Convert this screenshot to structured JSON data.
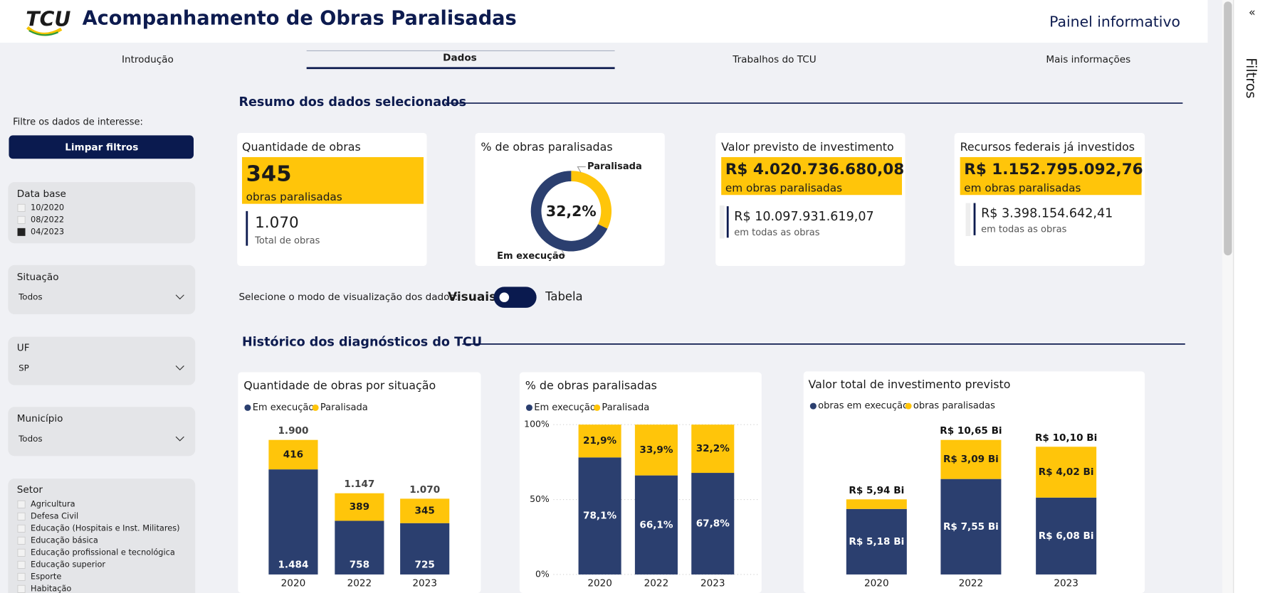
{
  "header": {
    "logo": "TCU",
    "title": "Acompanhamento de Obras Paralisadas",
    "right": "Painel informativo"
  },
  "tabs": {
    "items": [
      "Introdução",
      "Dados",
      "Trabalhos do TCU",
      "Mais informações"
    ],
    "active": 1
  },
  "sidebar": {
    "prompt": "Filtre os dados de interesse:",
    "clear_button": "Limpar filtros",
    "data_base": {
      "label": "Data base",
      "options": [
        "10/2020",
        "08/2022",
        "04/2023"
      ],
      "selected": 2
    },
    "situacao": {
      "label": "Situação",
      "value": "Todos"
    },
    "uf": {
      "label": "UF",
      "value": "SP"
    },
    "municipio": {
      "label": "Município",
      "value": "Todos"
    },
    "setor": {
      "label": "Setor",
      "options": [
        "Agricultura",
        "Defesa Civil",
        "Educação (Hospitais e Inst. Militares)",
        "Educação básica",
        "Educação profissional e tecnológica",
        "Educação superior",
        "Esporte",
        "Habitação"
      ]
    }
  },
  "summary": {
    "title": "Resumo dos dados selecionados",
    "quantidade": {
      "title": "Quantidade de obras",
      "highlight": "345",
      "highlight_sub": "obras paralisadas",
      "total": "1.070",
      "total_sub": "Total de obras"
    },
    "percentual": {
      "title": "% de obras paralisadas",
      "chart": {
        "type": "pie",
        "categories": [
          "Paralisada",
          "Em execução"
        ],
        "values": [
          32.2,
          67.8
        ],
        "colors": [
          "#ffc50a",
          "#2b3f6f"
        ],
        "center_label": "32,2%"
      }
    },
    "valor_previsto": {
      "title": "Valor previsto de investimento",
      "highlight": "R$ 4.020.736.680,08",
      "highlight_sub": "em obras paralisadas",
      "total": "R$ 10.097.931.619,07",
      "total_sub": "em todas as obras"
    },
    "recursos": {
      "title": "Recursos federais já investidos",
      "highlight": "R$ 1.152.795.092,76",
      "highlight_sub": "em obras paralisadas",
      "total": "R$ 3.398.154.642,41",
      "total_sub": "em todas as obras"
    }
  },
  "toggle": {
    "prompt": "Selecione o modo de visualização dos dados:",
    "options": [
      "Visuais",
      "Tabela"
    ],
    "selected": 0
  },
  "history": {
    "title": "Histórico dos diagnósticos do TCU",
    "charts": [
      {
        "type": "bar",
        "title": "Quantidade de obras por situação",
        "categories": [
          "2020",
          "2022",
          "2023"
        ],
        "series": [
          {
            "name": "Em execução",
            "color": "#2b3f6f",
            "values": [
              1484,
              758,
              725
            ],
            "value_labels": [
              "1.484",
              "758",
              "725"
            ]
          },
          {
            "name": "Paralisada",
            "color": "#ffc50a",
            "values": [
              416,
              389,
              345
            ],
            "value_labels": [
              "416",
              "389",
              "345"
            ]
          }
        ],
        "total_labels": [
          "1.900",
          "1.147",
          "1.070"
        ]
      },
      {
        "type": "bar",
        "title": "% de obras paralisadas",
        "categories": [
          "2020",
          "2022",
          "2023"
        ],
        "series": [
          {
            "name": "Em execução",
            "color": "#2b3f6f",
            "values": [
              78.1,
              66.1,
              67.8
            ],
            "value_labels": [
              "78,1%",
              "66,1%",
              "67,8%"
            ]
          },
          {
            "name": "Paralisada",
            "color": "#ffc50a",
            "values": [
              21.9,
              33.9,
              32.2
            ],
            "value_labels": [
              "21,9%",
              "33,9%",
              "32,2%"
            ]
          }
        ],
        "ylim": [
          0,
          100
        ],
        "yticks": [
          {
            "value": 0,
            "label": "0%"
          },
          {
            "value": 50,
            "label": "50%"
          },
          {
            "value": 100,
            "label": "100%"
          }
        ],
        "grid": true
      },
      {
        "type": "bar",
        "title": "Valor total de investimento previsto",
        "categories": [
          "2020",
          "2022",
          "2023"
        ],
        "series": [
          {
            "name": "obras em execução",
            "color": "#2b3f6f",
            "values": [
              5.18,
              7.55,
              6.08
            ],
            "value_labels": [
              "R$ 5,18 Bi",
              "R$ 7,55 Bi",
              "R$ 6,08 Bi"
            ]
          },
          {
            "name": "obras paralisadas",
            "color": "#ffc50a",
            "values": [
              0.76,
              3.09,
              4.02
            ],
            "value_labels": [
              null,
              "R$ 3,09 Bi",
              "R$ 4,02 Bi"
            ]
          }
        ],
        "total_labels": [
          "R$ 5,94 Bi",
          "R$ 10,65 Bi",
          "R$ 10,10 Bi"
        ]
      }
    ]
  },
  "side_panel": {
    "label": "Filtros"
  }
}
